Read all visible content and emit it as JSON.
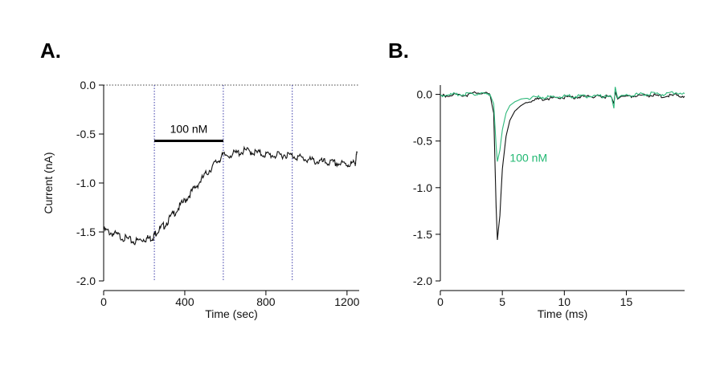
{
  "colors": {
    "trace_black": "#111111",
    "trace_green": "#2db87a",
    "annotation_green": "#21b872",
    "dotted_guide": "#3a3aa8"
  },
  "chart_data": [
    {
      "panel_label": "A.",
      "type": "line",
      "xlabel": "Time (sec)",
      "ylabel": "Current (nA)",
      "xlim": [
        0,
        1260
      ],
      "ylim": [
        -2.0,
        0.0
      ],
      "xticks": [
        0,
        400,
        800,
        1200
      ],
      "xtick_labels": [
        "0",
        "400",
        "800",
        "1200"
      ],
      "yticks": [
        0.0,
        -0.5,
        -1.0,
        -1.5,
        -2.0
      ],
      "ytick_labels": [
        "0.0",
        "-0.5",
        "-1.0",
        "-1.5",
        "-2.0"
      ],
      "zero_line": 0.0,
      "vertical_guides": [
        250,
        590,
        930
      ],
      "annotation": {
        "text": "100 nM",
        "bar_x": [
          250,
          590
        ],
        "bar_y": -0.57
      },
      "series": [
        {
          "color_key": "trace_black",
          "x": [
            0,
            50,
            100,
            150,
            200,
            240,
            260,
            300,
            350,
            400,
            450,
            500,
            550,
            590,
            650,
            700,
            750,
            800,
            850,
            900,
            950,
            1000,
            1050,
            1100,
            1150,
            1200,
            1240,
            1250
          ],
          "y": [
            -1.48,
            -1.52,
            -1.56,
            -1.6,
            -1.57,
            -1.56,
            -1.5,
            -1.43,
            -1.3,
            -1.18,
            -1.05,
            -0.92,
            -0.8,
            -0.72,
            -0.7,
            -0.67,
            -0.69,
            -0.71,
            -0.72,
            -0.71,
            -0.73,
            -0.76,
            -0.78,
            -0.79,
            -0.8,
            -0.81,
            -0.8,
            -0.69
          ]
        }
      ]
    },
    {
      "panel_label": "B.",
      "type": "line",
      "xlabel": "Time (ms)",
      "ylabel": "",
      "xlim": [
        0,
        19.7
      ],
      "ylim": [
        -2.0,
        0.1
      ],
      "xticks": [
        0,
        5,
        10,
        15
      ],
      "xtick_labels": [
        "0",
        "5",
        "10",
        "15"
      ],
      "yticks": [
        0.0,
        -0.5,
        -1.0,
        -1.5,
        -2.0
      ],
      "ytick_labels": [
        "0.0",
        "-0.5",
        "-1.0",
        "-1.5",
        "-2.0"
      ],
      "annotation": {
        "text": "100 nM",
        "x": 5.6,
        "y": -0.68
      },
      "series": [
        {
          "color_key": "trace_black",
          "x": [
            0,
            1,
            2,
            3,
            4,
            4.3,
            4.5,
            4.6,
            4.8,
            5.0,
            5.3,
            5.6,
            6.0,
            6.5,
            7.0,
            8.0,
            9.0,
            10.0,
            11.0,
            12.0,
            13.0,
            13.8,
            14.0,
            14.1,
            14.3,
            14.6,
            15,
            16,
            17,
            18,
            19,
            19.7
          ],
          "y": [
            -0.02,
            0.0,
            -0.01,
            0.02,
            0.0,
            -0.2,
            -1.2,
            -1.56,
            -1.3,
            -0.8,
            -0.45,
            -0.28,
            -0.18,
            -0.12,
            -0.08,
            -0.05,
            -0.04,
            -0.03,
            -0.03,
            -0.02,
            -0.02,
            -0.03,
            -0.1,
            0.03,
            -0.05,
            -0.02,
            -0.02,
            -0.01,
            -0.01,
            -0.02,
            -0.01,
            -0.02
          ]
        },
        {
          "color_key": "trace_green",
          "x": [
            0,
            1,
            2,
            3,
            4,
            4.3,
            4.5,
            4.6,
            4.8,
            5.0,
            5.3,
            5.6,
            6.0,
            6.5,
            7.0,
            8.0,
            9.0,
            10.0,
            11.0,
            12.0,
            13.0,
            13.8,
            14.0,
            14.1,
            14.3,
            14.6,
            15,
            16,
            17,
            18,
            19,
            19.7
          ],
          "y": [
            -0.01,
            0.0,
            0.0,
            0.01,
            0.0,
            -0.1,
            -0.55,
            -0.72,
            -0.6,
            -0.38,
            -0.2,
            -0.12,
            -0.08,
            -0.05,
            -0.04,
            -0.03,
            -0.03,
            -0.02,
            -0.02,
            -0.02,
            -0.02,
            -0.03,
            -0.15,
            0.08,
            -0.04,
            -0.01,
            -0.01,
            0.0,
            0.01,
            0.0,
            0.02,
            0.01
          ]
        }
      ]
    }
  ]
}
